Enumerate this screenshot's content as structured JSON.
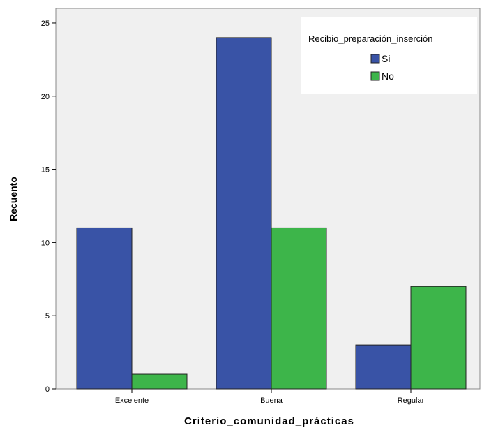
{
  "chart_data": {
    "type": "bar",
    "title": "",
    "xlabel": "Criterio_comunidad_prácticas",
    "ylabel": "Recuento",
    "categories": [
      "Excelente",
      "Buena",
      "Regular"
    ],
    "series": [
      {
        "name": "Si",
        "values": [
          11,
          24,
          3
        ],
        "color": "#3953a6"
      },
      {
        "name": "No",
        "values": [
          1,
          11,
          7
        ],
        "color": "#3db54a"
      }
    ],
    "ylim": [
      0,
      26
    ],
    "yticks": [
      0,
      5,
      10,
      15,
      20,
      25
    ],
    "grid": false,
    "legend": {
      "title": "Recibio_preparación_inserción",
      "placement": "top-right"
    },
    "colors": {
      "plot_background": "#f0f0f0",
      "bar_outline": "#222222"
    }
  }
}
